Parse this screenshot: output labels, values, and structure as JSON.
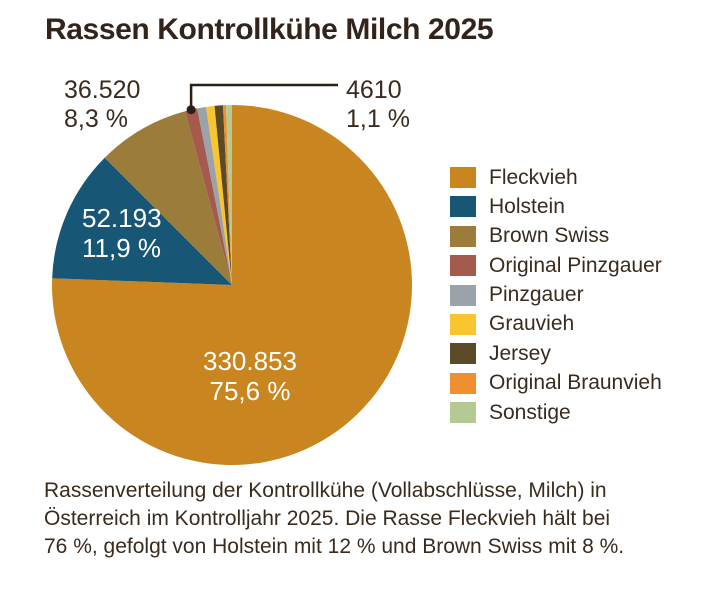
{
  "title": "Rassen Kontrollkühe Milch 2025",
  "colors": {
    "title_text": "#32241A",
    "body_text": "#3A2B1E",
    "callout_line": "#2A1F15",
    "background": "#FFFFFF"
  },
  "chart_data": {
    "type": "pie",
    "title": "Rassen Kontrollkühe Milch 2025",
    "direction": "clockwise",
    "start_angle_deg": 0,
    "legend_position": "right",
    "slices": [
      {
        "label": "Fleckvieh",
        "color": "#C9851F",
        "value": 330853,
        "percent": 75.6,
        "value_text": "330.853",
        "percent_text": "75,6 %",
        "label_placement": "inside"
      },
      {
        "label": "Holstein",
        "color": "#175775",
        "value": 52193,
        "percent": 11.9,
        "value_text": "52.193",
        "percent_text": "11,9 %",
        "label_placement": "inside"
      },
      {
        "label": "Brown Swiss",
        "color": "#9B7C3B",
        "value": 36520,
        "percent": 8.3,
        "value_text": "36.520",
        "percent_text": "8,3 %",
        "label_placement": "outside-left"
      },
      {
        "label": "Original Pinzgauer",
        "color": "#A45B4D",
        "value": 4610,
        "percent": 1.1,
        "value_text": "4610",
        "percent_text": "1,1 %",
        "label_placement": "outside-right",
        "callout": true
      },
      {
        "label": "Pinzgauer",
        "color": "#9BA2A9",
        "percent": 0.8,
        "percent_estimated": true
      },
      {
        "label": "Grauvieh",
        "color": "#F8C42F",
        "percent": 0.75,
        "percent_estimated": true
      },
      {
        "label": "Jersey",
        "color": "#5A4A28",
        "percent": 0.75,
        "percent_estimated": true
      },
      {
        "label": "Original Braunvieh",
        "color": "#EE9030",
        "percent": 0.27,
        "percent_estimated": true
      },
      {
        "label": "Sonstige",
        "color": "#B5CA93",
        "percent": 0.53,
        "percent_estimated": true
      }
    ]
  },
  "caption": {
    "lines": [
      "Rassenverteilung der Kontrollkühe (Vollabschlüsse, Milch) in",
      "Österreich im Kontrolljahr 2025. Die Rasse Fleckvieh hält bei",
      "76 %, gefolgt von Holstein mit 12 % und Brown Swiss mit 8 %."
    ]
  }
}
